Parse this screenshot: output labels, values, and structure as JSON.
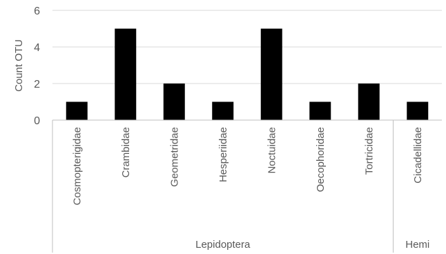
{
  "chart_data": {
    "type": "bar",
    "ylabel": "Count OTU",
    "ylim": [
      0,
      6
    ],
    "y_ticks": [
      0,
      2,
      4,
      6
    ],
    "grid": true,
    "categories": [
      "Cosmopterigidae",
      "Crambidae",
      "Geometridae",
      "Hesperiidae",
      "Noctuidae",
      "Oecophoridae",
      "Tortricidae",
      "Cicadellidae"
    ],
    "values": [
      1,
      5,
      2,
      1,
      5,
      1,
      2,
      1
    ],
    "groups": [
      {
        "label": "Lepidoptera",
        "count": 7
      },
      {
        "label": "Hemi",
        "count": 1
      }
    ],
    "colors": {
      "bar": "#000000",
      "grid": "#d9d9d9",
      "axis": "#bfbfbf",
      "text": "#595959"
    }
  }
}
